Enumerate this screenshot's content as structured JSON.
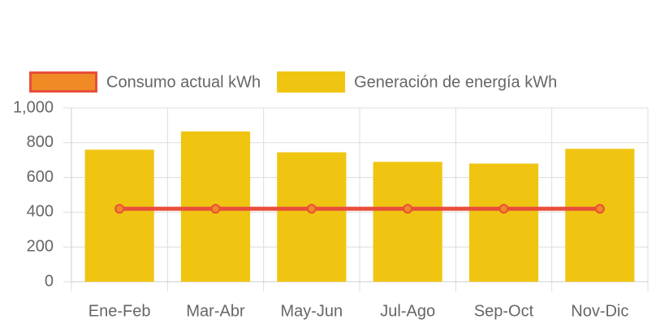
{
  "chart_data": {
    "type": "bar",
    "categories": [
      "Ene-Feb",
      "Mar-Abr",
      "May-Jun",
      "Jul-Ago",
      "Sep-Oct",
      "Nov-Dic"
    ],
    "series": [
      {
        "name": "Consumo actual kWh",
        "type": "line",
        "color": "#e84f3a",
        "point_color": "#ef8a24",
        "values": [
          420,
          420,
          420,
          420,
          420,
          420
        ]
      },
      {
        "name": "Generación de energía kWh",
        "type": "bar",
        "color": "#f0c512",
        "values": [
          760,
          865,
          745,
          690,
          680,
          765
        ]
      }
    ],
    "ylim": [
      0,
      1000
    ],
    "yticks": [
      0,
      200,
      400,
      600,
      800,
      {
        "value": 1000,
        "label": "1,000"
      }
    ],
    "grid": true,
    "legend": "top"
  }
}
